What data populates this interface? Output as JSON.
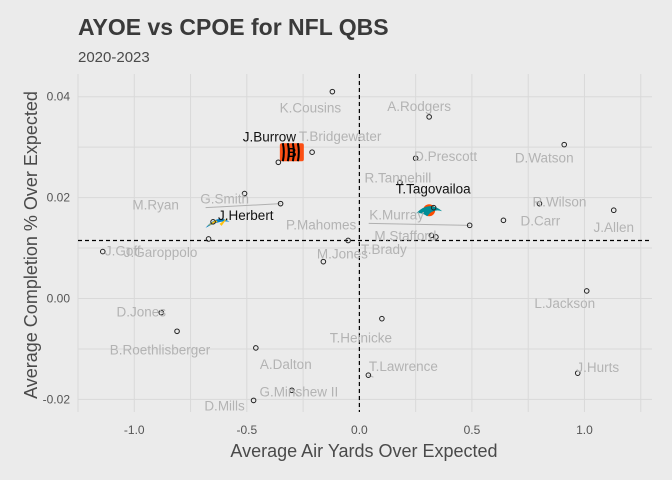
{
  "chart_data": {
    "type": "scatter",
    "title": "AYOE vs CPOE for NFL QBS",
    "subtitle": "2020-2023",
    "xlabel": "Average Air Yards Over Expected",
    "ylabel": "Average Completion % Over Expected",
    "xlim": [
      -1.25,
      1.3
    ],
    "ylim": [
      -0.0225,
      0.0445
    ],
    "xticks": [
      -1.0,
      -0.5,
      0.0,
      0.5,
      1.0
    ],
    "xtick_labels": [
      "-1.0",
      "-0.5",
      "0.0",
      "0.5",
      "1.0"
    ],
    "yticks": [
      -0.02,
      0.0,
      0.02,
      0.04
    ],
    "ytick_labels": [
      "-0.02",
      "0.00",
      "0.02",
      "0.04"
    ],
    "reference_lines": {
      "x": 0.0,
      "y": 0.0115
    },
    "grid": true,
    "legend": "none",
    "highlight_color": "#111111",
    "muted_color": "#b3b3b3",
    "logos": [
      {
        "team": "Bengals",
        "x": -0.3,
        "y": 0.029,
        "colors": [
          "#fb4f14",
          "#000000"
        ]
      },
      {
        "team": "Chargers",
        "x": -0.63,
        "y": 0.0148,
        "colors": [
          "#0080c6",
          "#ffc20e"
        ]
      },
      {
        "team": "Dolphins",
        "x": 0.31,
        "y": 0.0175,
        "colors": [
          "#008e97",
          "#fc4c02"
        ]
      }
    ],
    "points": [
      {
        "label": "K.Cousins",
        "x": -0.12,
        "y": 0.041,
        "highlight": false
      },
      {
        "label": "A.Rodgers",
        "x": 0.31,
        "y": 0.036,
        "highlight": false
      },
      {
        "label": "J.Burrow",
        "x": -0.36,
        "y": 0.027,
        "highlight": true
      },
      {
        "label": "T.Bridgewater",
        "x": -0.21,
        "y": 0.029,
        "highlight": false
      },
      {
        "label": "D.Watson",
        "x": 0.91,
        "y": 0.0305,
        "highlight": false
      },
      {
        "label": "G.Smith",
        "x": -0.51,
        "y": 0.0208,
        "highlight": false
      },
      {
        "label": "R.Tannehill",
        "x": 0.18,
        "y": 0.023,
        "highlight": false
      },
      {
        "label": "D.Prescott",
        "x": 0.25,
        "y": 0.0278,
        "highlight": false
      },
      {
        "label": "R.Wilson",
        "x": 0.8,
        "y": 0.0188,
        "highlight": false
      },
      {
        "label": "M.Ryan",
        "x": -0.35,
        "y": 0.0188,
        "highlight": false
      },
      {
        "label": "T.Tagovailoa",
        "x": 0.33,
        "y": 0.018,
        "highlight": true
      },
      {
        "label": "D.Carr",
        "x": 0.64,
        "y": 0.0155,
        "highlight": false
      },
      {
        "label": "J.Allen",
        "x": 1.13,
        "y": 0.0175,
        "highlight": false
      },
      {
        "label": "J.Herbert",
        "x": -0.65,
        "y": 0.0152,
        "highlight": true
      },
      {
        "label": "P.Mahomes",
        "x": -0.05,
        "y": 0.0115,
        "highlight": false
      },
      {
        "label": "K.Murray",
        "x": 0.49,
        "y": 0.0145,
        "highlight": false
      },
      {
        "label": "M.Stafford",
        "x": 0.32,
        "y": 0.0125,
        "highlight": false
      },
      {
        "label": "T.Brady",
        "x": 0.34,
        "y": 0.0122,
        "highlight": false
      },
      {
        "label": "J.Goff",
        "x": -1.14,
        "y": 0.0093,
        "highlight": false
      },
      {
        "label": "J.Garoppolo",
        "x": -0.67,
        "y": 0.0118,
        "highlight": false
      },
      {
        "label": "M.Jones",
        "x": -0.16,
        "y": 0.0073,
        "highlight": false
      },
      {
        "label": "L.Jackson",
        "x": 1.01,
        "y": 0.0015,
        "highlight": false
      },
      {
        "label": "D.Jones",
        "x": -0.88,
        "y": -0.0028,
        "highlight": false
      },
      {
        "label": "T.Heinicke",
        "x": 0.1,
        "y": -0.004,
        "highlight": false
      },
      {
        "label": "B.Roethlisberger",
        "x": -0.81,
        "y": -0.0065,
        "highlight": false
      },
      {
        "label": "A.Dalton",
        "x": -0.46,
        "y": -0.0098,
        "highlight": false
      },
      {
        "label": "T.Lawrence",
        "x": 0.04,
        "y": -0.0152,
        "highlight": false
      },
      {
        "label": "J.Hurts",
        "x": 0.97,
        "y": -0.0148,
        "highlight": false
      },
      {
        "label": "G.Minshew II",
        "x": -0.3,
        "y": -0.0182,
        "highlight": false
      },
      {
        "label": "D.Mills",
        "x": -0.47,
        "y": -0.0202,
        "highlight": false
      }
    ]
  }
}
